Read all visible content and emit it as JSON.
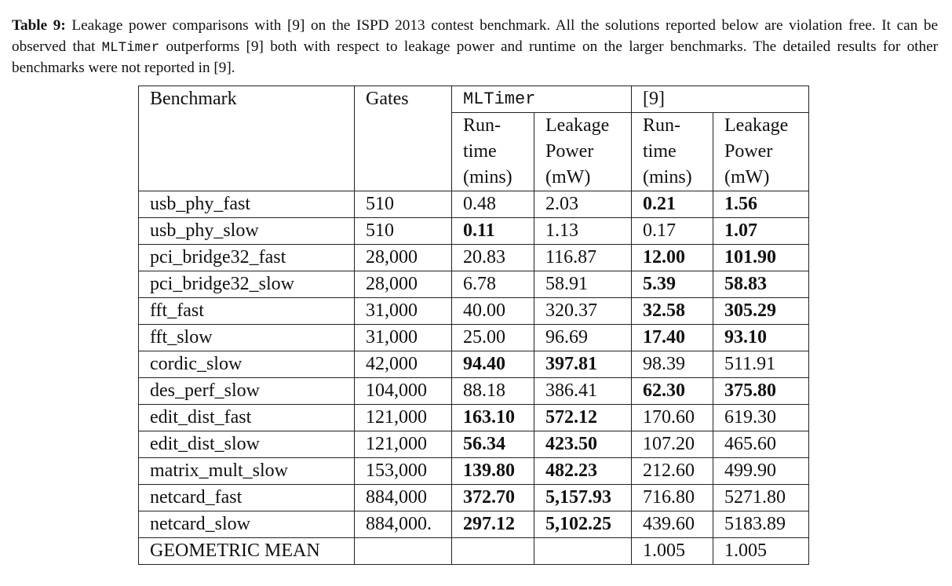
{
  "caption": {
    "label": "Table 9:",
    "part1": " Leakage power comparisons with [9] on the ISPD 2013 contest benchmark. All the solutions reported below are violation free. It can be observed that ",
    "tool": "MLTimer",
    "part2": " outperforms [9] both with respect to leakage power and runtime on the larger benchmarks. The detailed results for other benchmarks were not reported in [9]."
  },
  "table": {
    "col_benchmark": "Benchmark",
    "col_gates": "Gates",
    "group_mltimer": "MLTimer",
    "group_ref": "[9]",
    "sub_runtime": [
      "Run-",
      "time",
      "(mins)"
    ],
    "sub_leakage": [
      "Leakage",
      "Power",
      "(mW)"
    ],
    "rows": [
      {
        "benchmark": "usb_phy_fast",
        "gates": "510",
        "ml_runtime": "0.48",
        "ml_leakage": "2.03",
        "ref_runtime": "0.21",
        "ref_leakage": "1.56"
      },
      {
        "benchmark": "usb_phy_slow",
        "gates": "510",
        "ml_runtime": "0.11",
        "ml_leakage": "1.13",
        "ref_runtime": "0.17",
        "ref_leakage": "1.07"
      },
      {
        "benchmark": "pci_bridge32_fast",
        "gates": "28,000",
        "ml_runtime": "20.83",
        "ml_leakage": "116.87",
        "ref_runtime": "12.00",
        "ref_leakage": "101.90"
      },
      {
        "benchmark": "pci_bridge32_slow",
        "gates": "28,000",
        "ml_runtime": "6.78",
        "ml_leakage": "58.91",
        "ref_runtime": "5.39",
        "ref_leakage": "58.83"
      },
      {
        "benchmark": "fft_fast",
        "gates": "31,000",
        "ml_runtime": "40.00",
        "ml_leakage": "320.37",
        "ref_runtime": "32.58",
        "ref_leakage": "305.29"
      },
      {
        "benchmark": "fft_slow",
        "gates": "31,000",
        "ml_runtime": "25.00",
        "ml_leakage": "96.69",
        "ref_runtime": "17.40",
        "ref_leakage": "93.10"
      },
      {
        "benchmark": "cordic_slow",
        "gates": "42,000",
        "ml_runtime": "94.40",
        "ml_leakage": "397.81",
        "ref_runtime": "98.39",
        "ref_leakage": "511.91"
      },
      {
        "benchmark": "des_perf_slow",
        "gates": "104,000",
        "ml_runtime": "88.18",
        "ml_leakage": "386.41",
        "ref_runtime": "62.30",
        "ref_leakage": "375.80"
      },
      {
        "benchmark": "edit_dist_fast",
        "gates": "121,000",
        "ml_runtime": "163.10",
        "ml_leakage": "572.12",
        "ref_runtime": "170.60",
        "ref_leakage": "619.30"
      },
      {
        "benchmark": "edit_dist_slow",
        "gates": "121,000",
        "ml_runtime": "56.34",
        "ml_leakage": "423.50",
        "ref_runtime": "107.20",
        "ref_leakage": "465.60"
      },
      {
        "benchmark": "matrix_mult_slow",
        "gates": "153,000",
        "ml_runtime": "139.80",
        "ml_leakage": "482.23",
        "ref_runtime": "212.60",
        "ref_leakage": "499.90"
      },
      {
        "benchmark": "netcard_fast",
        "gates": "884,000",
        "ml_runtime": "372.70",
        "ml_leakage": "5,157.93",
        "ref_runtime": "716.80",
        "ref_leakage": "5271.80"
      },
      {
        "benchmark": "netcard_slow",
        "gates": "884,000.",
        "ml_runtime": "297.12",
        "ml_leakage": "5,102.25",
        "ref_runtime": "439.60",
        "ref_leakage": "5183.89"
      },
      {
        "benchmark": "GEOMETRIC MEAN",
        "gates": "",
        "ml_runtime": "",
        "ml_leakage": "",
        "ref_runtime": "1.005",
        "ref_leakage": "1.005"
      }
    ],
    "bold_cells": [
      [
        false,
        false,
        true,
        true
      ],
      [
        true,
        false,
        false,
        true
      ],
      [
        false,
        false,
        true,
        true
      ],
      [
        false,
        false,
        true,
        true
      ],
      [
        false,
        false,
        true,
        true
      ],
      [
        false,
        false,
        true,
        true
      ],
      [
        true,
        true,
        false,
        false
      ],
      [
        false,
        false,
        true,
        true
      ],
      [
        true,
        true,
        false,
        false
      ],
      [
        true,
        true,
        false,
        false
      ],
      [
        true,
        true,
        false,
        false
      ],
      [
        true,
        true,
        false,
        false
      ],
      [
        true,
        true,
        false,
        false
      ],
      [
        false,
        false,
        false,
        false
      ]
    ]
  }
}
